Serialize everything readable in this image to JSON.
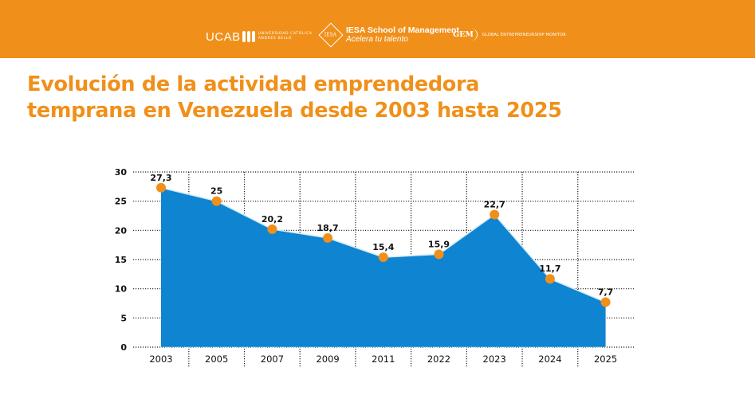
{
  "header": {
    "bg_color": "#f0901a",
    "logos": {
      "ucab": {
        "name": "UCAB",
        "subtitle_line1": "UNIVERSIDAD CATÓLICA",
        "subtitle_line2": "ANDRÉS BELLO"
      },
      "iesa": {
        "mark": "IESA",
        "title": "IESA School of Management",
        "tagline": "Acelera tu talento"
      },
      "gem": {
        "mark": "GEM",
        "subtitle": "GLOBAL ENTREPRENEURSHIP MONITOR"
      }
    }
  },
  "title_line1": "Evolución de la actividad emprendedora",
  "title_line2": "temprana en Venezuela desde 2003 hasta 2025",
  "chart_data": {
    "type": "area",
    "title": "Evolución de la actividad emprendedora temprana en Venezuela desde 2003 hasta 2025",
    "xlabel": "",
    "ylabel": "",
    "categories": [
      "2003",
      "2005",
      "2007",
      "2009",
      "2011",
      "2022",
      "2023",
      "2024",
      "2025"
    ],
    "values": [
      27.3,
      25,
      20.2,
      18.7,
      15.4,
      15.9,
      22.7,
      11.7,
      7.7
    ],
    "data_labels": [
      "27,3",
      "25",
      "20,2",
      "18,7",
      "15,4",
      "15,9",
      "22,7",
      "11,7",
      "7,7"
    ],
    "ylim": [
      0,
      30
    ],
    "yticks": [
      0,
      5,
      10,
      15,
      20,
      25,
      30
    ],
    "grid": true,
    "legend": "none",
    "colors": {
      "area": "#0f84d0",
      "area_edge": "#cfeaf8",
      "marker": "#f0901a",
      "text": "#111111"
    }
  }
}
